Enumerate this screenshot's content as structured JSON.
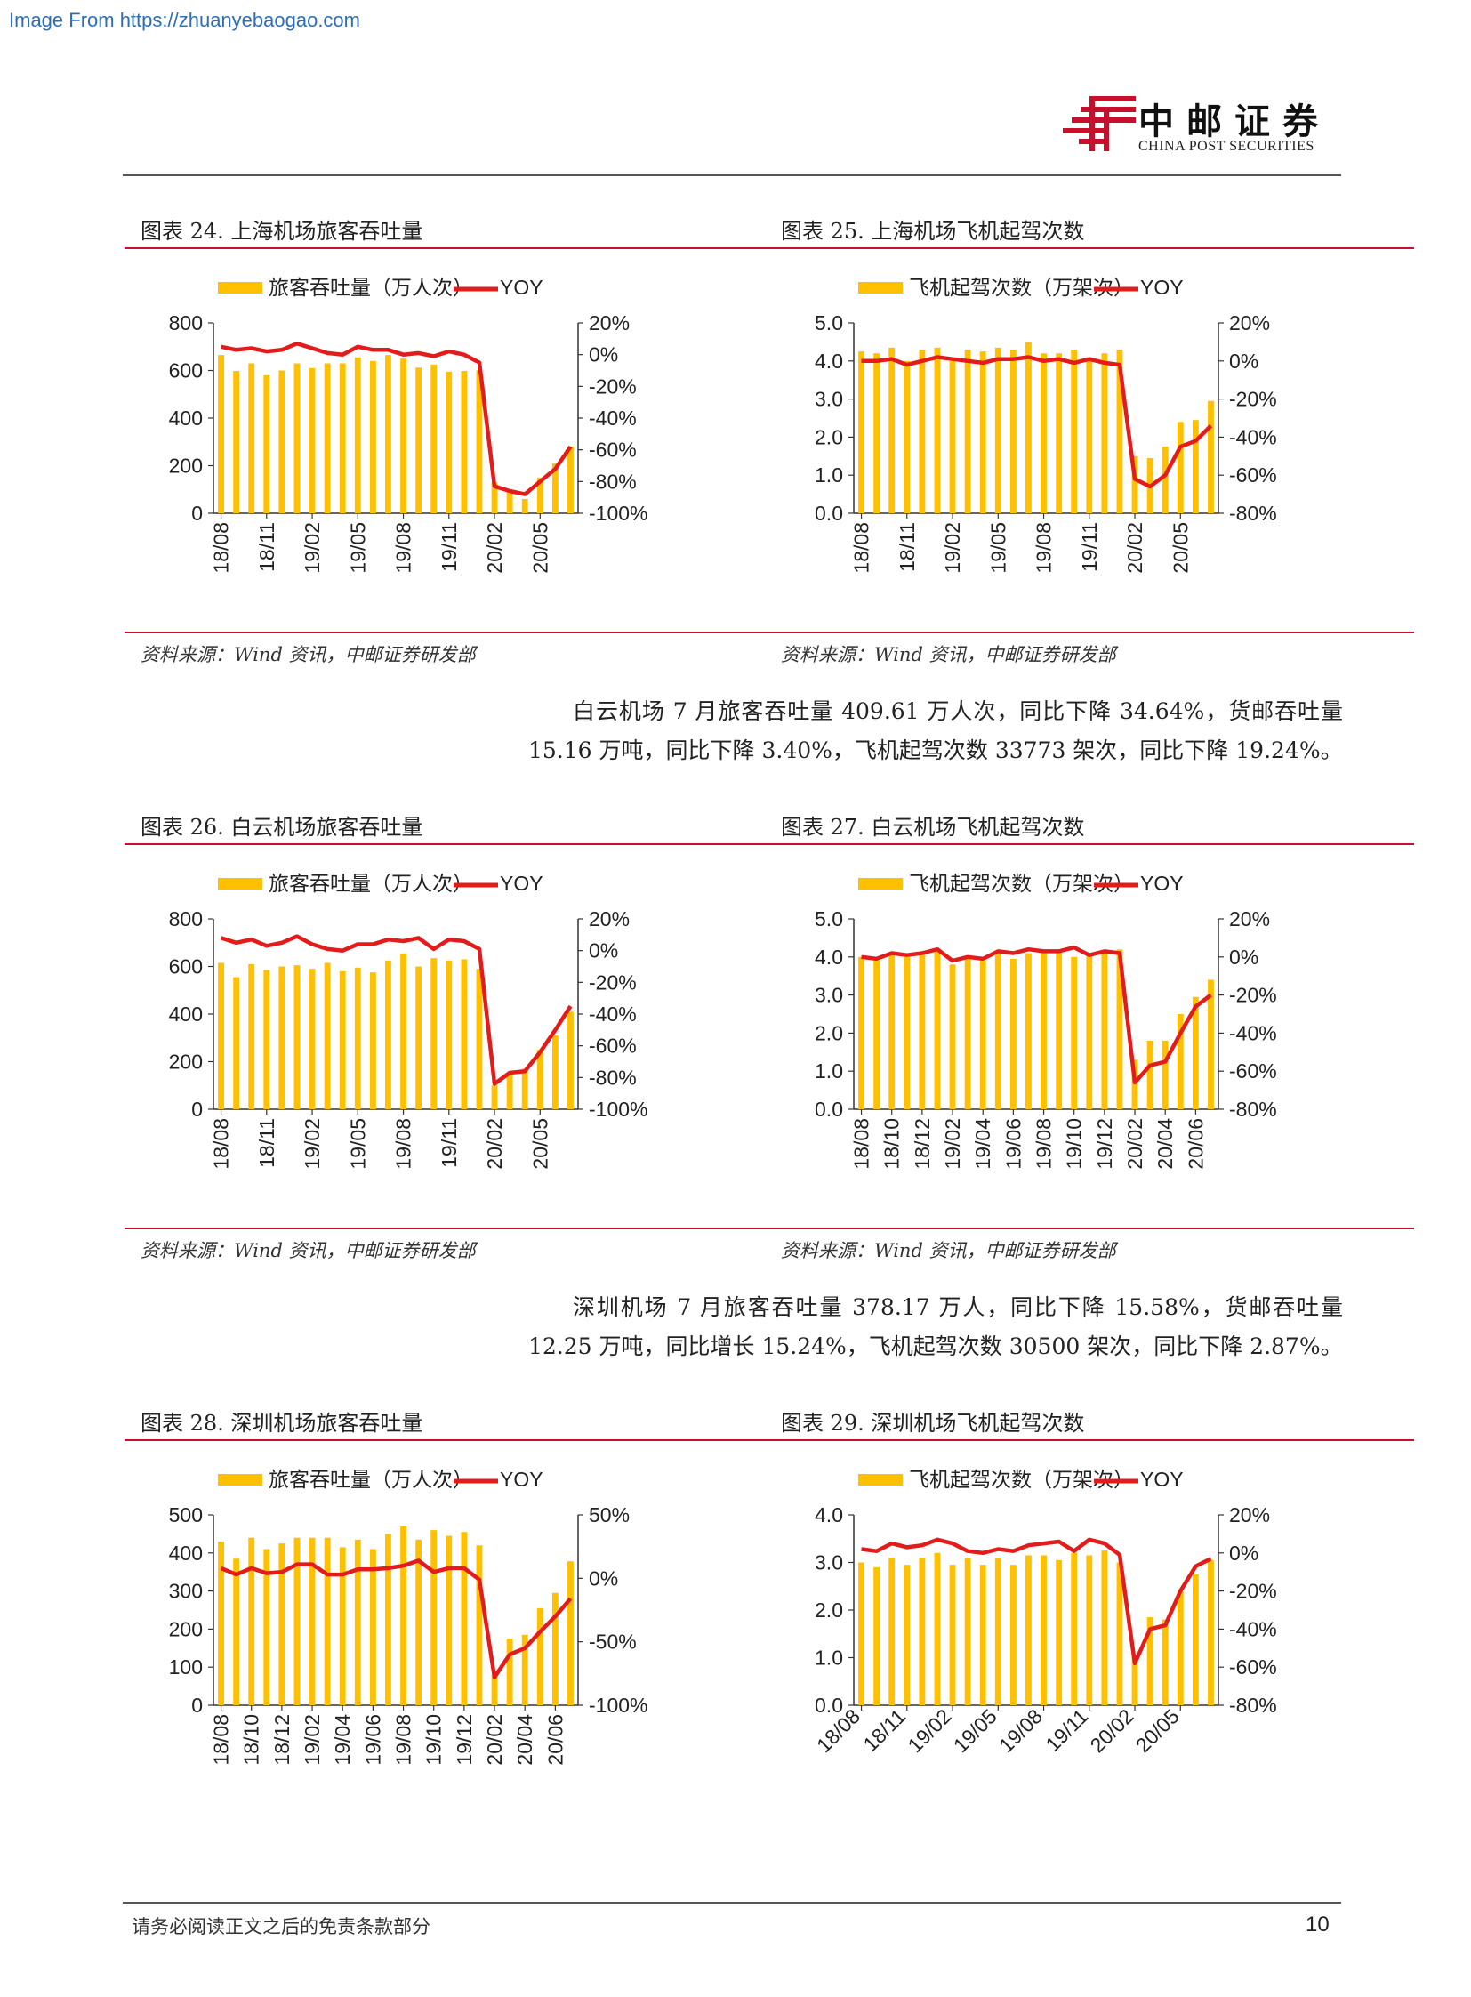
{
  "watermark": "Image From https://zhuanyebaogao.com",
  "header": {
    "logo_cn": "中邮证券",
    "logo_en": "CHINA POST SECURITIES"
  },
  "figures": [
    {
      "title": "图表 24. 上海机场旅客吞吐量",
      "source": "资料来源：Wind 资讯，中邮证券研发部"
    },
    {
      "title": "图表 25. 上海机场飞机起驾次数",
      "source": "资料来源：Wind 资讯，中邮证券研发部"
    },
    {
      "title": "图表 26. 白云机场旅客吞吐量",
      "source": "资料来源：Wind 资讯，中邮证券研发部"
    },
    {
      "title": "图表 27. 白云机场飞机起驾次数",
      "source": "资料来源：Wind 资讯，中邮证券研发部"
    },
    {
      "title": "图表 28. 深圳机场旅客吞吐量"
    },
    {
      "title": "图表 29. 深圳机场飞机起驾次数"
    }
  ],
  "paragraphs": [
    "白云机场 7 月旅客吞吐量 409.61 万人次，同比下降 34.64%，货邮吞吐量 15.16 万吨，同比下降 3.40%，飞机起驾次数 33773 架次，同比下降 19.24%。",
    "深圳机场 7 月旅客吞吐量 378.17 万人，同比下降 15.58%，货邮吞吐量 12.25 万吨，同比增长 15.24%，飞机起驾次数 30500 架次，同比下降 2.87%。"
  ],
  "footer": {
    "disclaimer": "请务必阅读正文之后的免责条款部分",
    "page": "10"
  },
  "colors": {
    "bar": "#FFC000",
    "line": "#E31B1B",
    "accent_red": "#C8102E"
  },
  "chart_data": [
    {
      "type": "bar+line",
      "legend": [
        "旅客吞吐量（万人次）",
        "YOY"
      ],
      "x_labels": [
        "18/08",
        "18/11",
        "19/02",
        "19/05",
        "19/08",
        "19/11",
        "20/02",
        "20/05"
      ],
      "x_label_step": 3,
      "ylim_left": [
        0,
        800
      ],
      "yticks_left": [
        "0",
        "200",
        "400",
        "600",
        "800"
      ],
      "ylim_right": [
        -100,
        20
      ],
      "yticks_right": [
        "-100%",
        "-80%",
        "-60%",
        "-40%",
        "-20%",
        "0%",
        "20%"
      ],
      "bars": [
        665,
        598,
        630,
        580,
        600,
        630,
        610,
        630,
        630,
        655,
        640,
        665,
        650,
        612,
        625,
        595,
        598,
        600,
        130,
        100,
        60,
        150,
        210,
        280
      ],
      "yoy": [
        5,
        3,
        4,
        2,
        3,
        7,
        4,
        1,
        0,
        5,
        3,
        3,
        0,
        1,
        -1,
        2,
        0,
        -5,
        -83,
        -86,
        -88,
        -80,
        -72,
        -58
      ]
    },
    {
      "type": "bar+line",
      "legend": [
        "飞机起驾次数（万架次）",
        "YOY"
      ],
      "x_labels": [
        "18/08",
        "18/11",
        "19/02",
        "19/05",
        "19/08",
        "19/11",
        "20/02",
        "20/05"
      ],
      "x_label_step": 3,
      "ylim_left": [
        0,
        5
      ],
      "yticks_left": [
        "0.0",
        "1.0",
        "2.0",
        "3.0",
        "4.0",
        "5.0"
      ],
      "ylim_right": [
        -80,
        20
      ],
      "yticks_right": [
        "-80%",
        "-60%",
        "-40%",
        "-20%",
        "0%",
        "20%"
      ],
      "bars": [
        4.25,
        4.2,
        4.35,
        4.0,
        4.3,
        4.35,
        4.0,
        4.3,
        4.25,
        4.35,
        4.3,
        4.5,
        4.2,
        4.2,
        4.3,
        4.1,
        4.2,
        4.3,
        1.5,
        1.45,
        1.75,
        2.4,
        2.45,
        2.95
      ],
      "yoy": [
        0,
        0,
        1,
        -2,
        0,
        2,
        1,
        0,
        -1,
        1,
        1,
        2,
        0,
        1,
        -1,
        1,
        -1,
        -2,
        -62,
        -66,
        -60,
        -45,
        -42,
        -34
      ]
    },
    {
      "type": "bar+line",
      "legend": [
        "旅客吞吐量（万人次）",
        "YOY"
      ],
      "x_labels": [
        "18/08",
        "18/11",
        "19/02",
        "19/05",
        "19/08",
        "19/11",
        "20/02",
        "20/05"
      ],
      "x_label_step": 3,
      "ylim_left": [
        0,
        800
      ],
      "yticks_left": [
        "0",
        "200",
        "400",
        "600",
        "800"
      ],
      "ylim_right": [
        -100,
        20
      ],
      "yticks_right": [
        "-100%",
        "-80%",
        "-60%",
        "-40%",
        "-20%",
        "0%",
        "20%"
      ],
      "bars": [
        615,
        555,
        610,
        585,
        600,
        605,
        590,
        615,
        580,
        595,
        575,
        625,
        655,
        600,
        635,
        625,
        630,
        590,
        100,
        150,
        170,
        250,
        310,
        410
      ],
      "yoy": [
        8,
        5,
        7,
        3,
        5,
        9,
        4,
        1,
        0,
        4,
        4,
        7,
        6,
        8,
        1,
        7,
        6,
        1,
        -84,
        -77,
        -76,
        -64,
        -50,
        -35
      ]
    },
    {
      "type": "bar+line",
      "legend": [
        "飞机起驾次数（万架次）",
        "YOY"
      ],
      "x_labels": [
        "18/08",
        "18/10",
        "18/12",
        "19/02",
        "19/04",
        "19/06",
        "19/08",
        "19/10",
        "19/12",
        "20/02",
        "20/04",
        "20/06"
      ],
      "x_label_step": 2,
      "ylim_left": [
        0,
        5
      ],
      "yticks_left": [
        "0.0",
        "1.0",
        "2.0",
        "3.0",
        "4.0",
        "5.0"
      ],
      "ylim_right": [
        -80,
        20
      ],
      "yticks_right": [
        "-80%",
        "-60%",
        "-40%",
        "-20%",
        "0%",
        "20%"
      ],
      "bars": [
        4.0,
        3.9,
        4.1,
        4.0,
        4.1,
        4.2,
        3.8,
        4.0,
        3.9,
        4.1,
        3.95,
        4.1,
        4.1,
        4.15,
        4.0,
        4.05,
        4.1,
        4.2,
        1.3,
        1.8,
        1.8,
        2.5,
        2.95,
        3.4
      ],
      "yoy": [
        0,
        -1,
        2,
        1,
        2,
        4,
        -2,
        0,
        -1,
        3,
        2,
        4,
        3,
        3,
        5,
        1,
        3,
        2,
        -66,
        -57,
        -55,
        -40,
        -26,
        -20
      ]
    },
    {
      "type": "bar+line",
      "legend": [
        "旅客吞吐量（万人次）",
        "YOY"
      ],
      "x_labels": [
        "18/08",
        "18/10",
        "18/12",
        "19/02",
        "19/04",
        "19/06",
        "19/08",
        "19/10",
        "19/12",
        "20/02",
        "20/04",
        "20/06"
      ],
      "x_label_step": 2,
      "ylim_left": [
        0,
        500
      ],
      "yticks_left": [
        "0",
        "100",
        "200",
        "300",
        "400",
        "500"
      ],
      "ylim_right": [
        -100,
        50
      ],
      "yticks_right": [
        "-100%",
        "-50%",
        "0%",
        "50%"
      ],
      "bars": [
        430,
        385,
        440,
        410,
        425,
        440,
        440,
        440,
        415,
        435,
        410,
        450,
        470,
        435,
        460,
        445,
        455,
        420,
        80,
        175,
        185,
        255,
        295,
        378
      ],
      "yoy": [
        8,
        3,
        8,
        4,
        5,
        11,
        11,
        3,
        3,
        7,
        7,
        8,
        10,
        14,
        5,
        8,
        8,
        -1,
        -78,
        -60,
        -55,
        -42,
        -30,
        -16
      ]
    },
    {
      "type": "bar+line",
      "legend": [
        "飞机起驾次数（万架次）",
        "YOY"
      ],
      "x_labels": [
        "18/08",
        "18/11",
        "19/02",
        "19/05",
        "19/08",
        "19/11",
        "20/02",
        "20/05"
      ],
      "x_label_step": 3,
      "x_labels_rotation": -45,
      "ylim_left": [
        0,
        4
      ],
      "yticks_left": [
        "0.0",
        "1.0",
        "2.0",
        "3.0",
        "4.0"
      ],
      "ylim_right": [
        -80,
        20
      ],
      "yticks_right": [
        "-80%",
        "-60%",
        "-40%",
        "-20%",
        "0%",
        "20%"
      ],
      "bars": [
        3.0,
        2.9,
        3.1,
        2.95,
        3.1,
        3.2,
        2.95,
        3.1,
        2.95,
        3.1,
        2.95,
        3.15,
        3.15,
        3.05,
        3.2,
        3.15,
        3.25,
        3.0,
        1.05,
        1.85,
        1.8,
        2.4,
        2.75,
        3.05
      ],
      "yoy": [
        2,
        1,
        5,
        3,
        4,
        7,
        5,
        1,
        0,
        2,
        1,
        4,
        5,
        6,
        1,
        7,
        5,
        -1,
        -58,
        -40,
        -38,
        -20,
        -7,
        -3
      ]
    }
  ]
}
